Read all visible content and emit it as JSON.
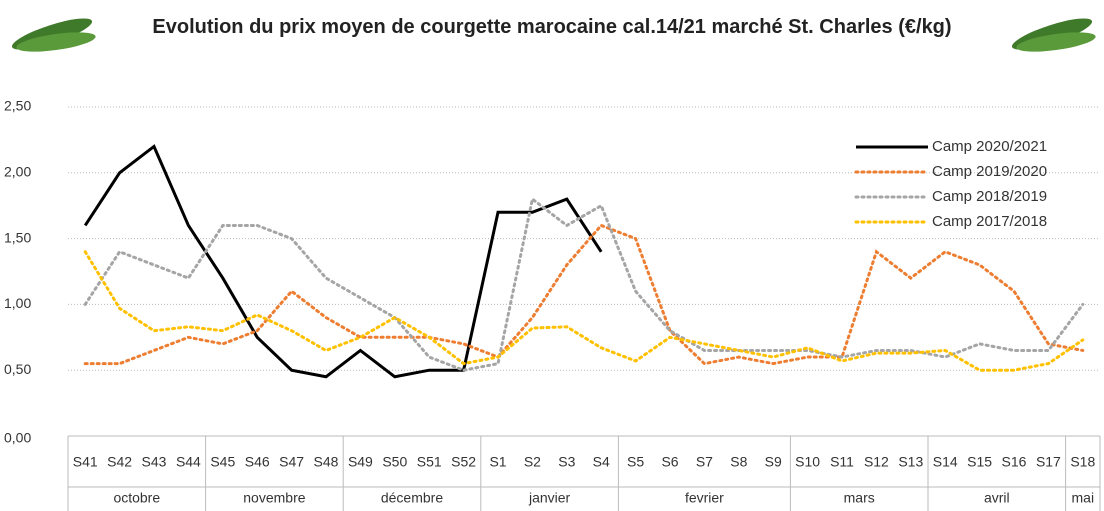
{
  "chart_data": {
    "type": "line",
    "title": "Evolution du prix moyen de courgette marocaine cal.14/21 marché St. Charles (€/kg)",
    "categories": [
      "S41",
      "S42",
      "S43",
      "S44",
      "S45",
      "S46",
      "S47",
      "S48",
      "S49",
      "S50",
      "S51",
      "S52",
      "S1",
      "S2",
      "S3",
      "S4",
      "S5",
      "S6",
      "S7",
      "S8",
      "S9",
      "S10",
      "S11",
      "S12",
      "S13",
      "S14",
      "S15",
      "S16",
      "S17",
      "S18"
    ],
    "months": [
      {
        "name": "octobre",
        "weeks": 4
      },
      {
        "name": "novembre",
        "weeks": 4
      },
      {
        "name": "décembre",
        "weeks": 4
      },
      {
        "name": "janvier",
        "weeks": 4
      },
      {
        "name": "fevrier",
        "weeks": 5
      },
      {
        "name": "mars",
        "weeks": 4
      },
      {
        "name": "avril",
        "weeks": 4
      },
      {
        "name": "mai",
        "weeks": 1
      }
    ],
    "series": [
      {
        "name": "Camp 2020/2021",
        "color": "#000000",
        "label_color": "#000000",
        "line_style": "solid",
        "values": [
          1.6,
          2.0,
          2.2,
          1.6,
          1.2,
          0.75,
          0.5,
          0.45,
          0.65,
          0.45,
          0.5,
          0.5,
          1.7,
          1.7,
          1.8,
          1.4,
          null,
          null,
          null,
          null,
          null,
          null,
          null,
          null,
          null,
          null,
          null,
          null,
          null,
          null
        ]
      },
      {
        "name": "Camp 2019/2020",
        "color": "#ed7d31",
        "label_color": "#c00000",
        "line_style": "dotted",
        "values": [
          0.55,
          0.55,
          0.65,
          0.75,
          0.7,
          0.8,
          1.1,
          0.9,
          0.75,
          0.75,
          0.75,
          0.7,
          0.6,
          0.9,
          1.3,
          1.6,
          1.5,
          0.8,
          0.55,
          0.6,
          0.55,
          0.6,
          0.6,
          1.4,
          1.2,
          1.4,
          1.3,
          1.1,
          0.7,
          0.65
        ]
      },
      {
        "name": "Camp 2018/2019",
        "color": "#a5a5a5",
        "label_color": "#00b050",
        "line_style": "dotted",
        "values": [
          1.0,
          1.4,
          1.3,
          1.2,
          1.6,
          1.6,
          1.5,
          1.2,
          1.05,
          0.9,
          0.6,
          0.5,
          0.55,
          1.8,
          1.6,
          1.75,
          1.1,
          0.8,
          0.65,
          0.65,
          0.65,
          0.65,
          0.6,
          0.65,
          0.65,
          0.6,
          0.7,
          0.65,
          0.65,
          1.0
        ]
      },
      {
        "name": "Camp 2017/2018",
        "color": "#ffc000",
        "label_color": "#000000",
        "line_style": "dotted",
        "values": [
          1.4,
          0.97,
          0.8,
          0.83,
          0.8,
          0.92,
          0.8,
          0.65,
          0.75,
          0.9,
          0.75,
          0.55,
          0.6,
          0.82,
          0.83,
          0.67,
          0.57,
          0.75,
          0.7,
          0.65,
          0.6,
          0.67,
          0.57,
          0.63,
          0.63,
          0.65,
          0.5,
          0.5,
          0.55,
          0.73
        ]
      }
    ],
    "ylim": [
      0,
      2.5
    ],
    "yticks": [
      {
        "value": 0,
        "label": "0,00"
      },
      {
        "value": 0.5,
        "label": "0,50"
      },
      {
        "value": 1,
        "label": "1,00"
      },
      {
        "value": 1.5,
        "label": "1,50"
      },
      {
        "value": 2,
        "label": "2,00"
      },
      {
        "value": 2.5,
        "label": "2,50"
      }
    ],
    "grid": true,
    "legend": "upper right"
  }
}
